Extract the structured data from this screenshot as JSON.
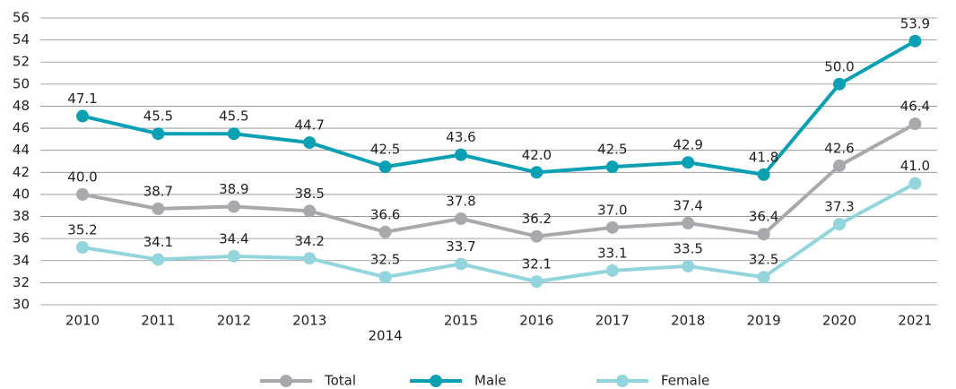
{
  "chart_data": {
    "type": "line",
    "categories": [
      "2010",
      "2011",
      "2012",
      "2013",
      "2014",
      "2015",
      "2016",
      "2017",
      "2018",
      "2019",
      "2020",
      "2021"
    ],
    "series": [
      {
        "name": "Total",
        "color": "#a7a9ac",
        "values": [
          40.0,
          38.7,
          38.9,
          38.5,
          36.6,
          37.8,
          36.2,
          37.0,
          37.4,
          36.4,
          42.6,
          46.4
        ],
        "value_labels": [
          "40.0",
          "38.7",
          "38.9",
          "38.5",
          "36.6",
          "37.8",
          "36.2",
          "37.0",
          "37.4",
          "36.4",
          "42.6",
          "46.4"
        ]
      },
      {
        "name": "Male",
        "color": "#0aa0b4",
        "values": [
          47.1,
          45.5,
          45.5,
          44.7,
          42.5,
          43.6,
          42.0,
          42.5,
          42.9,
          41.8,
          50.0,
          53.9
        ],
        "value_labels": [
          "47.1",
          "45.5",
          "45.5",
          "44.7",
          "42.5",
          "43.6",
          "42.0",
          "42.5",
          "42.9",
          "41.8",
          "50.0",
          "53.9"
        ]
      },
      {
        "name": "Female",
        "color": "#93d5dc",
        "values": [
          35.2,
          34.1,
          34.4,
          34.2,
          32.5,
          33.7,
          32.1,
          33.1,
          33.5,
          32.5,
          37.3,
          41.0
        ],
        "value_labels": [
          "35.2",
          "34.1",
          "34.4",
          "34.2",
          "32.5",
          "33.7",
          "32.1",
          "33.1",
          "33.5",
          "32.5",
          "37.3",
          "41.0"
        ]
      }
    ],
    "ylim": [
      30,
      56
    ],
    "yticks": [
      30,
      32,
      34,
      36,
      38,
      40,
      42,
      44,
      46,
      48,
      50,
      52,
      54,
      56
    ],
    "grid": true,
    "legend": "bottom"
  }
}
